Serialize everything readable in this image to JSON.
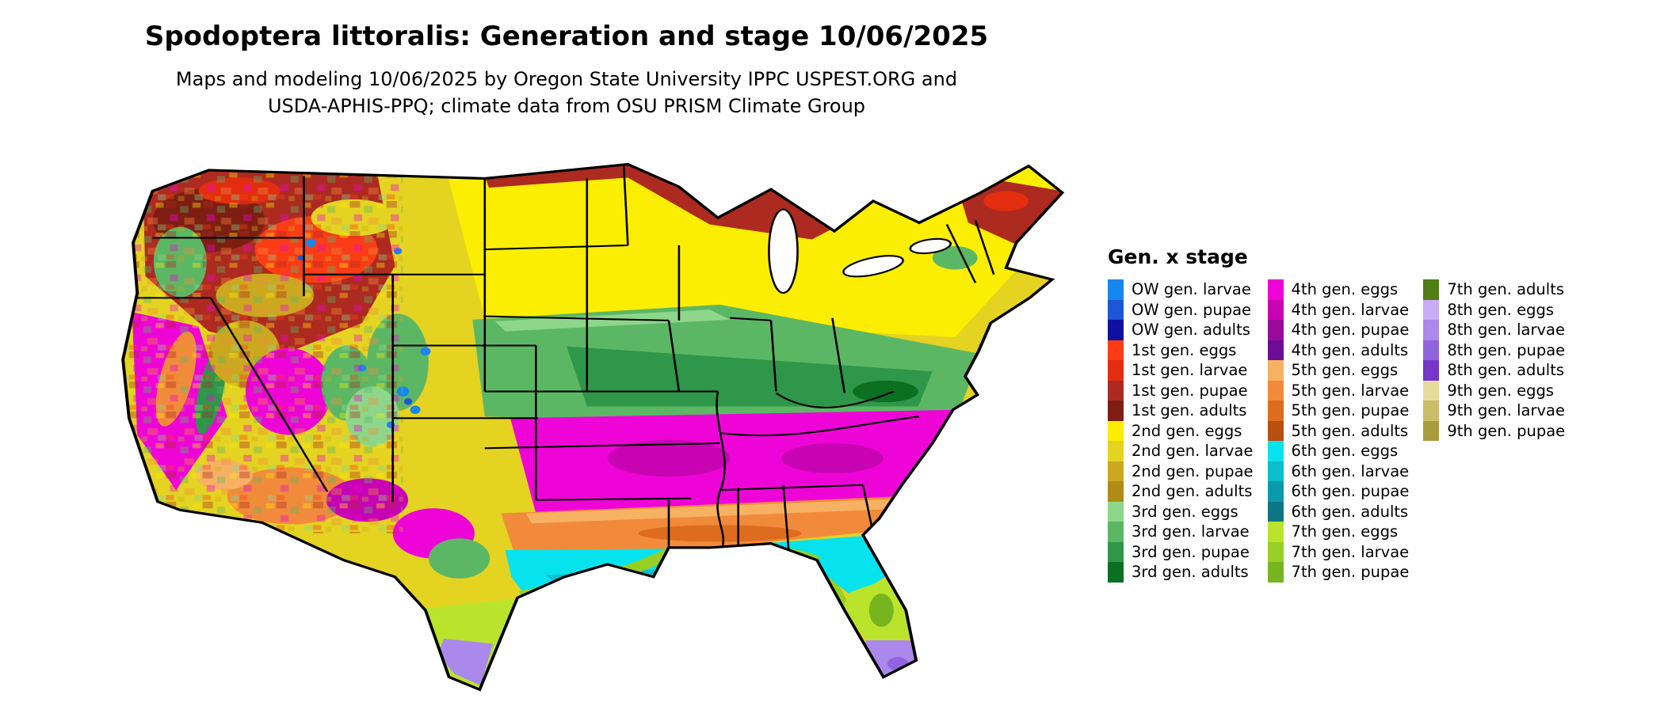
{
  "header": {
    "title": "Spodoptera littoralis: Generation and stage 10/06/2025",
    "subtitle_line1": "Maps and modeling 10/06/2025 by Oregon State University IPPC USPEST.ORG and",
    "subtitle_line2": "USDA-APHIS-PPQ; climate data from OSU PRISM Climate Group"
  },
  "legend": {
    "title": "Gen. x stage",
    "columns": [
      [
        {
          "label": "OW gen. larvae",
          "color": "#1787F0"
        },
        {
          "label": "OW gen. pupae",
          "color": "#1E56D6"
        },
        {
          "label": "OW gen. adults",
          "color": "#0F10A0"
        },
        {
          "label": "1st gen. eggs",
          "color": "#FB3C15"
        },
        {
          "label": "1st gen. larvae",
          "color": "#E32D0F"
        },
        {
          "label": "1st gen. pupae",
          "color": "#AD2A20"
        },
        {
          "label": "1st gen. adults",
          "color": "#7E1E12"
        },
        {
          "label": "2nd gen. eggs",
          "color": "#FBEE02"
        },
        {
          "label": "2nd gen. larvae",
          "color": "#E4D321"
        },
        {
          "label": "2nd gen. pupae",
          "color": "#CBA81F"
        },
        {
          "label": "2nd gen. adults",
          "color": "#AE8C15"
        },
        {
          "label": "3rd gen. eggs",
          "color": "#8ED689"
        },
        {
          "label": "3rd gen. larvae",
          "color": "#5CB765"
        },
        {
          "label": "3rd gen. pupae",
          "color": "#2E9749"
        },
        {
          "label": "3rd gen. adults",
          "color": "#0B7022"
        }
      ],
      [
        {
          "label": "4th gen. eggs",
          "color": "#EF04D8"
        },
        {
          "label": "4th gen. larvae",
          "color": "#C803B4"
        },
        {
          "label": "4th gen. pupae",
          "color": "#9A0A9A"
        },
        {
          "label": "4th gen. adults",
          "color": "#6B0D96"
        },
        {
          "label": "5th gen. eggs",
          "color": "#F7B163"
        },
        {
          "label": "5th gen. larvae",
          "color": "#F18B3B"
        },
        {
          "label": "5th gen. pupae",
          "color": "#DE6C1F"
        },
        {
          "label": "5th gen. adults",
          "color": "#B94F10"
        },
        {
          "label": "6th gen. eggs",
          "color": "#06E3EE"
        },
        {
          "label": "6th gen. larvae",
          "color": "#0ABECB"
        },
        {
          "label": "6th gen. pupae",
          "color": "#0B9AAB"
        },
        {
          "label": "6th gen. adults",
          "color": "#0D7583"
        },
        {
          "label": "7th gen. eggs",
          "color": "#BAE42C"
        },
        {
          "label": "7th gen. larvae",
          "color": "#97CF25"
        },
        {
          "label": "7th gen. pupae",
          "color": "#76B51F"
        }
      ],
      [
        {
          "label": "7th gen. adults",
          "color": "#507E15"
        },
        {
          "label": "8th gen. eggs",
          "color": "#C8ACF6"
        },
        {
          "label": "8th gen. larvae",
          "color": "#AB88EC"
        },
        {
          "label": "8th gen. pupae",
          "color": "#9164DE"
        },
        {
          "label": "8th gen. adults",
          "color": "#7636C9"
        },
        {
          "label": "9th gen. eggs",
          "color": "#E7DB9C"
        },
        {
          "label": "9th gen. larvae",
          "color": "#CBBC67"
        },
        {
          "label": "9th gen. pupae",
          "color": "#A89C3F"
        }
      ]
    ]
  }
}
